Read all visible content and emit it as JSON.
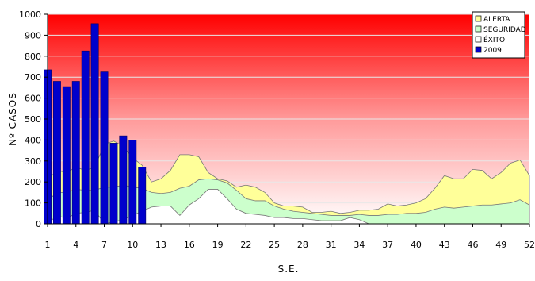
{
  "chart_data": {
    "type": "area",
    "title": "",
    "xlabel": "S.E.",
    "ylabel": "Nº CASOS",
    "ylim": [
      0,
      1000
    ],
    "xlim": [
      1,
      52
    ],
    "y_ticks": [
      0,
      100,
      200,
      300,
      400,
      500,
      600,
      700,
      800,
      900,
      1000
    ],
    "x_ticks": [
      1,
      4,
      7,
      10,
      13,
      16,
      19,
      22,
      25,
      28,
      31,
      34,
      37,
      40,
      43,
      46,
      49,
      52
    ],
    "grid": "horizontal",
    "legend_position": "top-right",
    "background": "gradient red (top) to white (bottom)",
    "weeks": [
      1,
      2,
      3,
      4,
      5,
      6,
      7,
      8,
      9,
      10,
      11,
      12,
      13,
      14,
      15,
      16,
      17,
      18,
      19,
      20,
      21,
      22,
      23,
      24,
      25,
      26,
      27,
      28,
      29,
      30,
      31,
      32,
      33,
      34,
      35,
      36,
      37,
      38,
      39,
      40,
      41,
      42,
      43,
      44,
      45,
      46,
      47,
      48,
      49,
      50,
      51,
      52
    ],
    "series": [
      {
        "name": "ALERTA",
        "kind": "area",
        "color": "#ffff99",
        "values": [
          210,
          255,
          245,
          270,
          255,
          270,
          380,
          395,
          370,
          315,
          280,
          200,
          215,
          255,
          330,
          330,
          320,
          245,
          215,
          205,
          175,
          185,
          175,
          150,
          100,
          85,
          85,
          80,
          55,
          55,
          60,
          50,
          55,
          65,
          65,
          70,
          95,
          85,
          90,
          100,
          120,
          170,
          230,
          215,
          215,
          260,
          255,
          215,
          245,
          290,
          305,
          230
        ]
      },
      {
        "name": "SEGURIDAD",
        "kind": "area",
        "color": "#ccffcc",
        "values": [
          110,
          150,
          150,
          165,
          160,
          160,
          175,
          175,
          185,
          175,
          170,
          150,
          145,
          150,
          170,
          180,
          210,
          215,
          210,
          195,
          160,
          120,
          110,
          110,
          85,
          70,
          60,
          55,
          50,
          45,
          40,
          40,
          40,
          45,
          40,
          40,
          45,
          45,
          50,
          50,
          55,
          70,
          80,
          75,
          80,
          85,
          90,
          90,
          95,
          100,
          115,
          90
        ]
      },
      {
        "name": "ÉXITO",
        "kind": "area",
        "color": "#ffffff",
        "values": [
          0,
          40,
          25,
          50,
          55,
          65,
          0,
          10,
          20,
          40,
          60,
          80,
          85,
          85,
          40,
          90,
          120,
          165,
          165,
          120,
          70,
          50,
          45,
          40,
          30,
          30,
          25,
          25,
          20,
          15,
          15,
          15,
          30,
          20,
          0,
          0,
          0,
          0,
          0,
          0,
          0,
          0,
          0,
          0,
          0,
          0,
          0,
          0,
          0,
          0,
          0,
          0
        ]
      },
      {
        "name": "2009",
        "kind": "bar",
        "color": "#0000cc",
        "values": [
          735,
          680,
          655,
          680,
          825,
          955,
          725,
          385,
          420,
          400,
          270
        ]
      }
    ]
  }
}
